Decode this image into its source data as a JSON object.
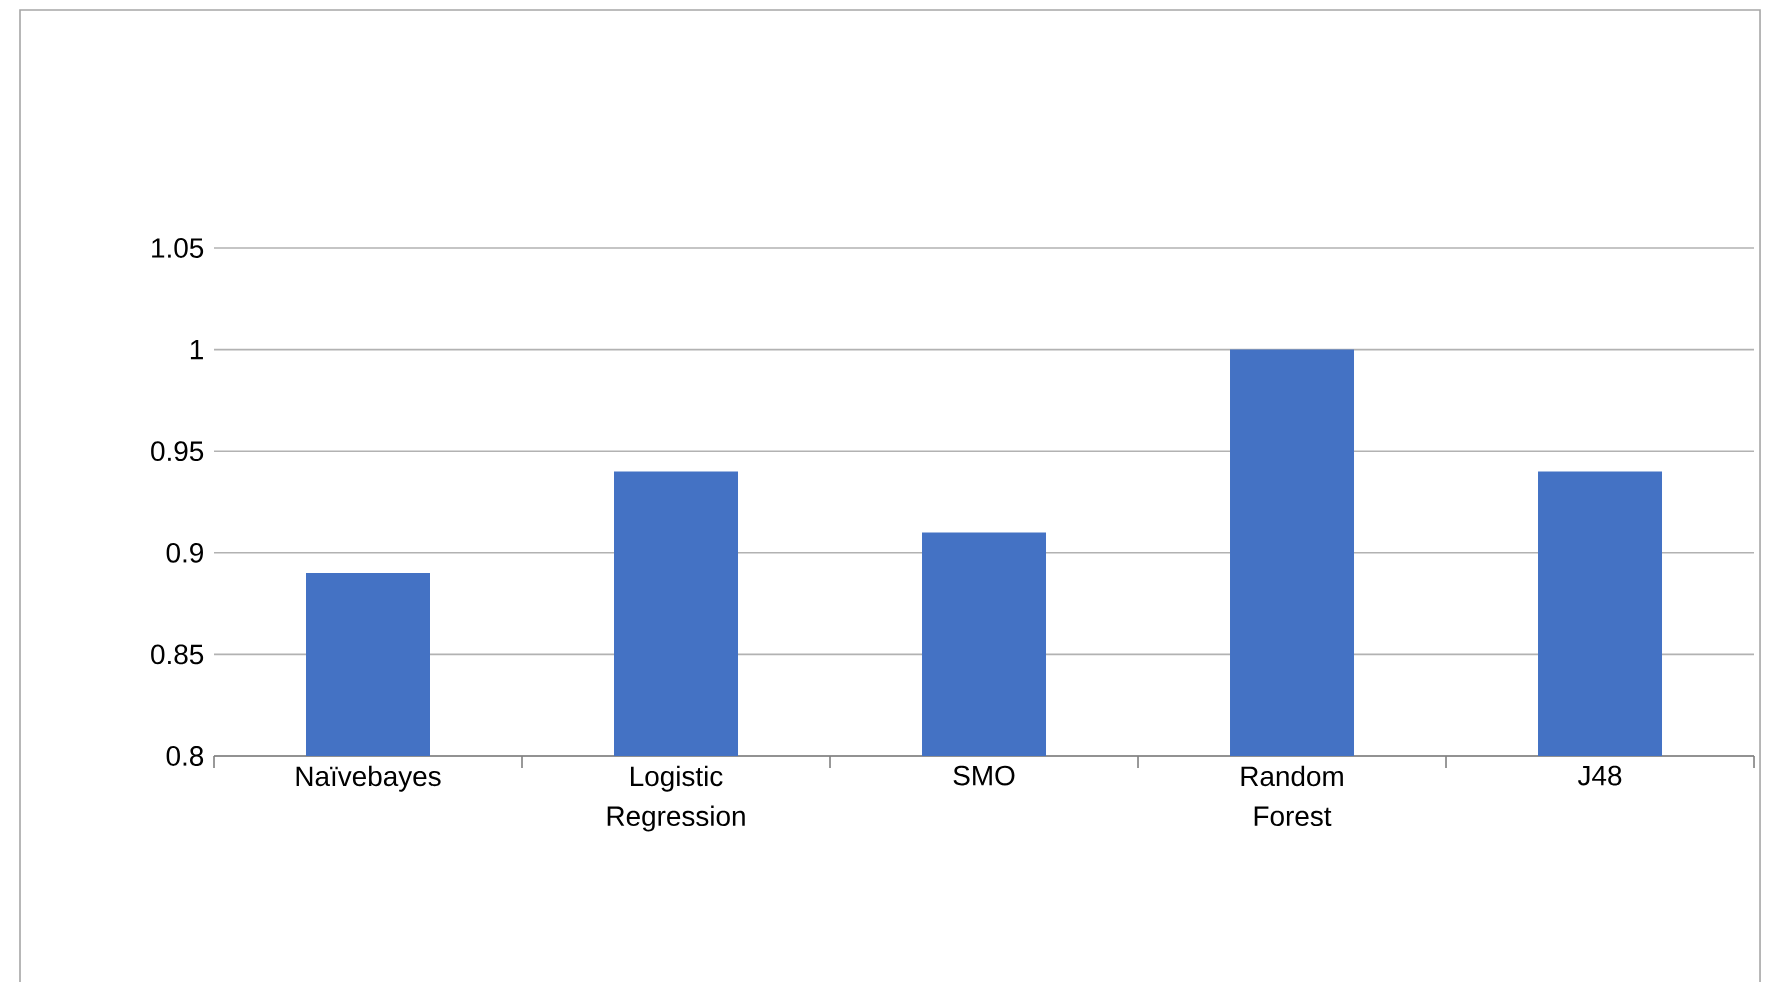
{
  "chart_data": {
    "type": "bar",
    "categories": [
      "Naïvebayes",
      "Logistic Regression",
      "SMO",
      "Random Forest",
      "J48"
    ],
    "values": [
      0.89,
      0.94,
      0.91,
      1.0,
      0.94
    ],
    "color": "#4472c4",
    "ylim": [
      0.8,
      1.05
    ],
    "yticks": [
      0.8,
      0.85,
      0.9,
      0.95,
      1,
      1.05
    ],
    "grid": "y"
  }
}
